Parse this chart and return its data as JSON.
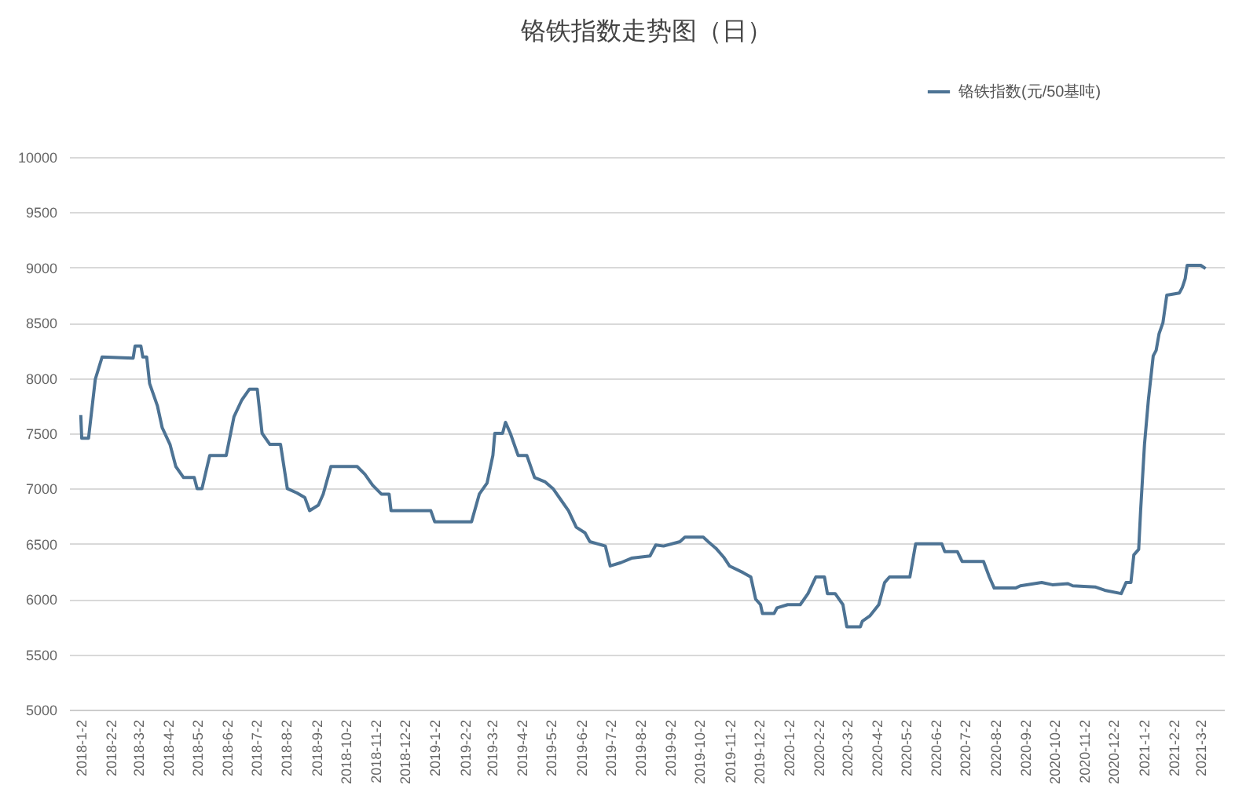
{
  "chart_data": {
    "type": "line",
    "title": "铬铁指数走势图（日）",
    "x": [
      "2018-01-02",
      "2018-01-03",
      "2018-01-10",
      "2018-01-17",
      "2018-01-24",
      "2018-02-25",
      "2018-02-27",
      "2018-03-05",
      "2018-03-07",
      "2018-03-11",
      "2018-03-14",
      "2018-03-22",
      "2018-03-27",
      "2018-04-04",
      "2018-04-10",
      "2018-04-18",
      "2018-04-29",
      "2018-05-02",
      "2018-05-07",
      "2018-05-15",
      "2018-06-01",
      "2018-06-09",
      "2018-06-17",
      "2018-06-25",
      "2018-07-03",
      "2018-07-08",
      "2018-07-16",
      "2018-07-27",
      "2018-08-03",
      "2018-08-13",
      "2018-08-21",
      "2018-08-26",
      "2018-09-04",
      "2018-09-09",
      "2018-09-17",
      "2018-10-14",
      "2018-10-22",
      "2018-10-30",
      "2018-11-08",
      "2018-11-16",
      "2018-11-18",
      "2018-12-29",
      "2019-01-02",
      "2019-02-09",
      "2019-02-17",
      "2019-02-25",
      "2019-03-03",
      "2019-03-05",
      "2019-03-13",
      "2019-03-16",
      "2019-03-21",
      "2019-03-29",
      "2019-04-07",
      "2019-04-15",
      "2019-04-26",
      "2019-05-04",
      "2019-05-12",
      "2019-05-20",
      "2019-05-28",
      "2019-06-06",
      "2019-06-11",
      "2019-06-27",
      "2019-07-02",
      "2019-07-13",
      "2019-07-24",
      "2019-08-12",
      "2019-08-18",
      "2019-08-26",
      "2019-09-12",
      "2019-09-17",
      "2019-10-06",
      "2019-10-11",
      "2019-10-19",
      "2019-10-27",
      "2019-11-02",
      "2019-11-16",
      "2019-11-24",
      "2019-11-29",
      "2019-12-04",
      "2019-12-06",
      "2019-12-18",
      "2019-12-21",
      "2020-01-01",
      "2020-01-14",
      "2020-01-22",
      "2020-01-30",
      "2020-02-08",
      "2020-02-11",
      "2020-02-19",
      "2020-02-27",
      "2020-03-02",
      "2020-03-16",
      "2020-03-18",
      "2020-03-26",
      "2020-04-04",
      "2020-04-10",
      "2020-04-15",
      "2020-05-06",
      "2020-05-12",
      "2020-06-08",
      "2020-06-11",
      "2020-06-24",
      "2020-06-29",
      "2020-07-21",
      "2020-07-27",
      "2020-08-01",
      "2020-08-23",
      "2020-08-28",
      "2020-09-19",
      "2020-09-30",
      "2020-10-16",
      "2020-10-21",
      "2020-11-13",
      "2020-11-23",
      "2020-12-10",
      "2020-12-15",
      "2020-12-20",
      "2020-12-23",
      "2020-12-28",
      "2020-12-30",
      "2021-01-03",
      "2021-01-07",
      "2021-01-12",
      "2021-01-15",
      "2021-01-18",
      "2021-01-22",
      "2021-01-26",
      "2021-02-08",
      "2021-02-11",
      "2021-02-14",
      "2021-02-16",
      "2021-03-02",
      "2021-03-07"
    ],
    "series": [
      {
        "name": "铬铁指数(元/50基吨)",
        "color": "#4d7394",
        "values": [
          7665,
          7455,
          7455,
          7990,
          8190,
          8180,
          8290,
          8290,
          8190,
          8190,
          7950,
          7750,
          7550,
          7400,
          7200,
          7100,
          7100,
          7000,
          7000,
          7300,
          7300,
          7650,
          7800,
          7900,
          7900,
          7500,
          7400,
          7400,
          7000,
          6960,
          6920,
          6800,
          6850,
          6950,
          7200,
          7200,
          7130,
          7030,
          6950,
          6950,
          6800,
          6800,
          6700,
          6700,
          6950,
          7050,
          7300,
          7500,
          7500,
          7600,
          7500,
          7300,
          7300,
          7100,
          7060,
          7000,
          6900,
          6800,
          6650,
          6600,
          6520,
          6480,
          6300,
          6330,
          6370,
          6390,
          6490,
          6480,
          6520,
          6560,
          6560,
          6520,
          6460,
          6380,
          6300,
          6240,
          6200,
          6000,
          5950,
          5870,
          5870,
          5920,
          5950,
          5950,
          6050,
          6200,
          6200,
          6050,
          6050,
          5950,
          5750,
          5750,
          5800,
          5850,
          5950,
          6150,
          6200,
          6200,
          6500,
          6500,
          6430,
          6430,
          6340,
          6340,
          6200,
          6100,
          6100,
          6120,
          6150,
          6130,
          6140,
          6120,
          6110,
          6080,
          6050,
          6150,
          6150,
          6400,
          6450,
          6800,
          7400,
          7800,
          8200,
          8250,
          8400,
          8500,
          8750,
          8770,
          8820,
          8900,
          9020,
          9020,
          8990
        ]
      }
    ],
    "xlim": [
      "2017-12-21",
      "2021-03-26"
    ],
    "xticks": [
      {
        "value": "2018-01-02",
        "label": "2018-1-2"
      },
      {
        "value": "2018-02-02",
        "label": "2018-2-2"
      },
      {
        "value": "2018-03-02",
        "label": "2018-3-2"
      },
      {
        "value": "2018-04-02",
        "label": "2018-4-2"
      },
      {
        "value": "2018-05-02",
        "label": "2018-5-2"
      },
      {
        "value": "2018-06-02",
        "label": "2018-6-2"
      },
      {
        "value": "2018-07-02",
        "label": "2018-7-2"
      },
      {
        "value": "2018-08-02",
        "label": "2018-8-2"
      },
      {
        "value": "2018-09-02",
        "label": "2018-9-2"
      },
      {
        "value": "2018-10-02",
        "label": "2018-10-2"
      },
      {
        "value": "2018-11-02",
        "label": "2018-11-2"
      },
      {
        "value": "2018-12-02",
        "label": "2018-12-2"
      },
      {
        "value": "2019-01-02",
        "label": "2019-1-2"
      },
      {
        "value": "2019-02-02",
        "label": "2019-2-2"
      },
      {
        "value": "2019-03-02",
        "label": "2019-3-2"
      },
      {
        "value": "2019-04-02",
        "label": "2019-4-2"
      },
      {
        "value": "2019-05-02",
        "label": "2019-5-2"
      },
      {
        "value": "2019-06-02",
        "label": "2019-6-2"
      },
      {
        "value": "2019-07-02",
        "label": "2019-7-2"
      },
      {
        "value": "2019-08-02",
        "label": "2019-8-2"
      },
      {
        "value": "2019-09-02",
        "label": "2019-9-2"
      },
      {
        "value": "2019-10-02",
        "label": "2019-10-2"
      },
      {
        "value": "2019-11-02",
        "label": "2019-11-2"
      },
      {
        "value": "2019-12-02",
        "label": "2019-12-2"
      },
      {
        "value": "2020-01-02",
        "label": "2020-1-2"
      },
      {
        "value": "2020-02-02",
        "label": "2020-2-2"
      },
      {
        "value": "2020-03-02",
        "label": "2020-3-2"
      },
      {
        "value": "2020-04-02",
        "label": "2020-4-2"
      },
      {
        "value": "2020-05-02",
        "label": "2020-5-2"
      },
      {
        "value": "2020-06-02",
        "label": "2020-6-2"
      },
      {
        "value": "2020-07-02",
        "label": "2020-7-2"
      },
      {
        "value": "2020-08-02",
        "label": "2020-8-2"
      },
      {
        "value": "2020-09-02",
        "label": "2020-9-2"
      },
      {
        "value": "2020-10-02",
        "label": "2020-10-2"
      },
      {
        "value": "2020-11-02",
        "label": "2020-11-2"
      },
      {
        "value": "2020-12-02",
        "label": "2020-12-2"
      },
      {
        "value": "2021-01-02",
        "label": "2021-1-2"
      },
      {
        "value": "2021-02-02",
        "label": "2021-2-2"
      },
      {
        "value": "2021-03-02",
        "label": "2021-3-2"
      }
    ],
    "ylim": [
      5000,
      10000
    ],
    "yticks": [
      5000,
      5500,
      6000,
      6500,
      7000,
      7500,
      8000,
      8500,
      9000,
      9500,
      10000
    ],
    "grid": "y",
    "legend": "top right",
    "marker": "none",
    "line_style": "solid"
  }
}
